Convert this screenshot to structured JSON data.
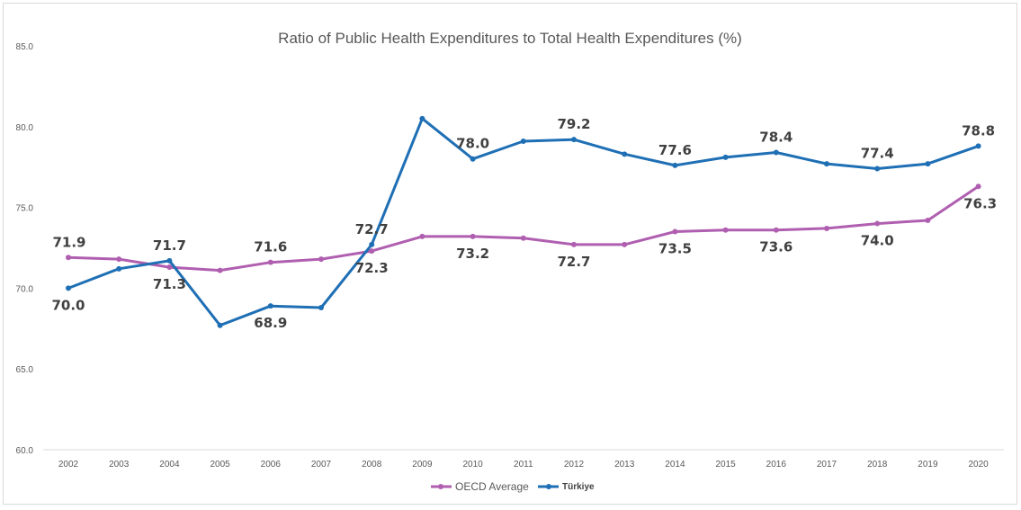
{
  "chart_data": {
    "type": "line",
    "title": "Ratio of Public Health Expenditures to Total Health Expenditures (%)",
    "xlabel": "",
    "ylabel": "",
    "ylim": [
      60,
      85
    ],
    "yticks": [
      "60.0",
      "65.0",
      "70.0",
      "75.0",
      "80.0",
      "85.0"
    ],
    "ytick_values": [
      60,
      65,
      70,
      75,
      80,
      85
    ],
    "categories": [
      "2002",
      "2003",
      "2004",
      "2005",
      "2006",
      "2007",
      "2008",
      "2009",
      "2010",
      "2011",
      "2012",
      "2013",
      "2014",
      "2015",
      "2016",
      "2017",
      "2018",
      "2019",
      "2020"
    ],
    "grid": false,
    "legend_position": "bottom",
    "series": [
      {
        "name": "OECD Average",
        "color": "#b05fb0",
        "values": [
          71.9,
          71.8,
          71.3,
          71.1,
          71.6,
          71.8,
          72.3,
          73.2,
          73.2,
          73.1,
          72.7,
          72.7,
          73.5,
          73.6,
          73.6,
          73.7,
          74.0,
          74.2,
          76.3
        ],
        "labels": {
          "0": "71.9",
          "2": "71.3",
          "4": "71.6",
          "6": "72.3",
          "8": "73.2",
          "10": "72.7",
          "12": "73.5",
          "14": "73.6",
          "16": "74.0",
          "18": "76.3"
        }
      },
      {
        "name": "Türkiye",
        "color": "#1f6fb5",
        "values": [
          70.0,
          71.2,
          71.7,
          67.7,
          68.9,
          68.8,
          72.7,
          80.5,
          78.0,
          79.1,
          79.2,
          78.3,
          77.6,
          78.1,
          78.4,
          77.7,
          77.4,
          77.7,
          78.8
        ],
        "labels": {
          "0": "70.0",
          "2": "71.7",
          "4": "68.9",
          "6": "72.7",
          "8": "78.0",
          "10": "79.2",
          "12": "77.6",
          "14": "78.4",
          "16": "77.4",
          "18": "78.8"
        }
      }
    ]
  }
}
